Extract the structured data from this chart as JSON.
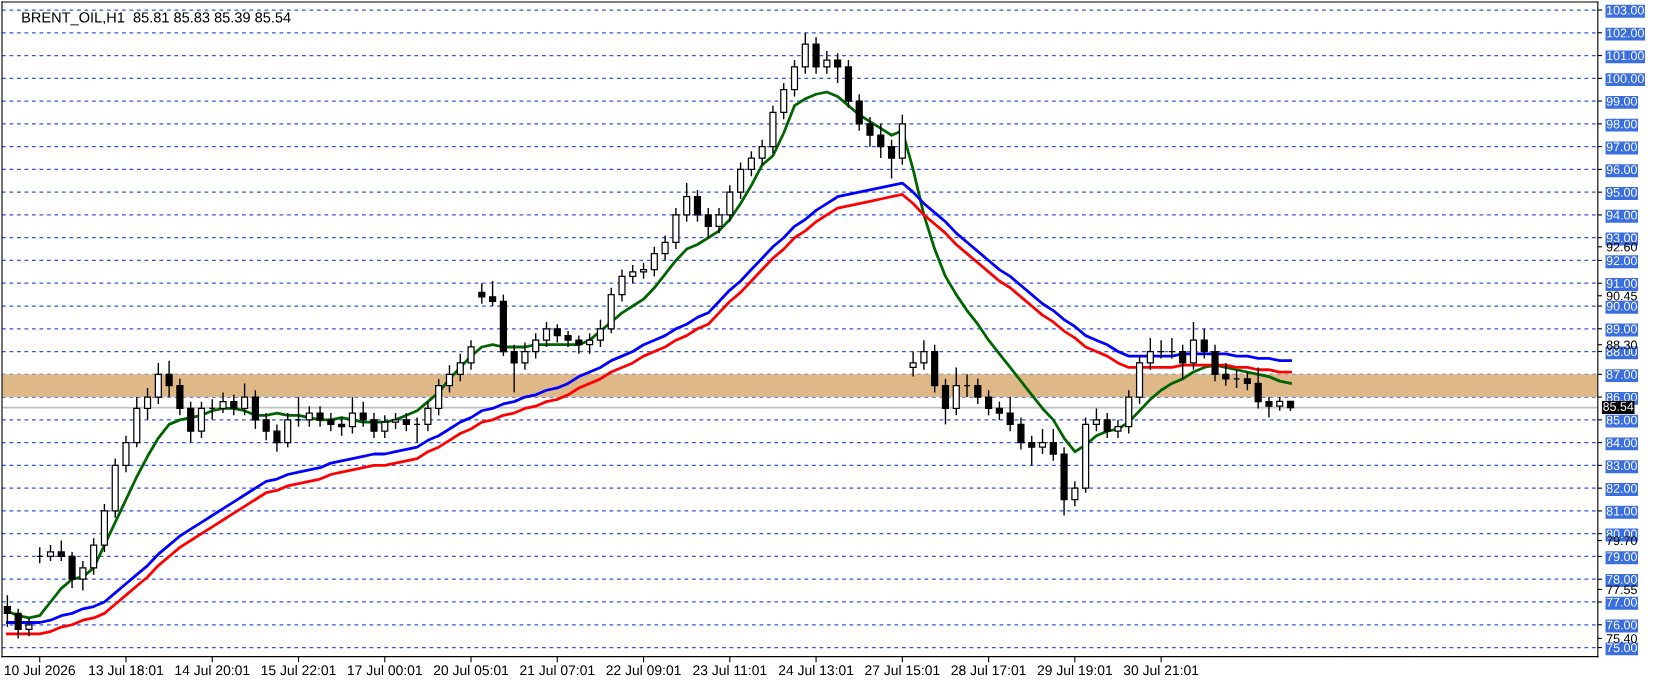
{
  "chart_data": {
    "type": "candlestick",
    "title": "BRENT_OIL,H1  85.81 85.83 85.39 85.54",
    "categories": [
      null,
      null,
      null,
      "10 Jul 2026",
      null,
      null,
      null,
      null,
      null,
      null,
      null,
      "13 Jul 18:01",
      null,
      null,
      null,
      null,
      null,
      null,
      null,
      "14 Jul 20:01",
      null,
      null,
      null,
      null,
      null,
      null,
      null,
      "15 Jul 22:01",
      null,
      null,
      null,
      null,
      null,
      null,
      null,
      "17 Jul 00:01",
      null,
      null,
      null,
      null,
      null,
      null,
      null,
      "20 Jul 05:01",
      null,
      null,
      null,
      null,
      null,
      null,
      null,
      "21 Jul 07:01",
      null,
      null,
      null,
      null,
      null,
      null,
      null,
      "22 Jul 09:01",
      null,
      null,
      null,
      null,
      null,
      null,
      null,
      "23 Jul 11:01",
      null,
      null,
      null,
      null,
      null,
      null,
      null,
      "24 Jul 13:01",
      null,
      null,
      null,
      null,
      null,
      null,
      null,
      "27 Jul 15:01",
      null,
      null,
      null,
      null,
      null,
      null,
      null,
      "28 Jul 17:01",
      null,
      null,
      null,
      null,
      null,
      null,
      null,
      "29 Jul 19:01",
      null,
      null,
      null,
      null,
      null,
      null,
      null,
      "30 Jul 21:01",
      null,
      null,
      null,
      null,
      null,
      null,
      null,
      null,
      null,
      null,
      null,
      null,
      null,
      null,
      null,
      null,
      null,
      null,
      null,
      null,
      null,
      null,
      null,
      null,
      null,
      null,
      null,
      null,
      null,
      null,
      null,
      null,
      null,
      null,
      null,
      null,
      null,
      null,
      null,
      null
    ],
    "ohlc": [
      [
        76.8,
        77.3,
        75.9,
        76.5
      ],
      [
        76.5,
        76.7,
        75.4,
        75.8
      ],
      [
        75.8,
        76.3,
        75.5,
        76.0
      ],
      [
        79.0,
        79.4,
        78.7,
        79.0
      ],
      [
        79.0,
        79.5,
        78.8,
        79.2
      ],
      [
        79.2,
        79.7,
        78.8,
        79.0
      ],
      [
        79.0,
        79.2,
        77.6,
        78.0
      ],
      [
        78.0,
        78.8,
        77.5,
        78.5
      ],
      [
        78.5,
        79.8,
        78.2,
        79.5
      ],
      [
        79.5,
        81.3,
        79.2,
        81.0
      ],
      [
        81.0,
        83.3,
        80.7,
        83.0
      ],
      [
        83.0,
        84.3,
        82.7,
        84.0
      ],
      [
        84.0,
        86.0,
        83.8,
        85.5
      ],
      [
        85.5,
        86.4,
        85.0,
        86.0
      ],
      [
        86.0,
        87.5,
        85.7,
        87.0
      ],
      [
        87.0,
        87.6,
        86.0,
        86.5
      ],
      [
        86.5,
        86.8,
        85.2,
        85.5
      ],
      [
        85.5,
        85.8,
        84.0,
        84.5
      ],
      [
        84.5,
        85.8,
        84.2,
        85.5
      ],
      [
        85.5,
        85.9,
        85.0,
        85.5
      ],
      [
        85.5,
        86.2,
        85.3,
        85.8
      ],
      [
        85.8,
        86.1,
        85.2,
        85.5
      ],
      [
        85.5,
        86.6,
        85.2,
        86.0
      ],
      [
        86.0,
        86.3,
        84.6,
        85.0
      ],
      [
        85.0,
        85.3,
        84.1,
        84.5
      ],
      [
        84.5,
        84.8,
        83.6,
        84.0
      ],
      [
        84.0,
        85.3,
        83.8,
        85.0
      ],
      [
        85.0,
        86.0,
        84.7,
        85.0
      ],
      [
        85.0,
        85.6,
        84.7,
        85.3
      ],
      [
        85.3,
        85.6,
        84.7,
        85.0
      ],
      [
        85.0,
        85.3,
        84.5,
        84.8
      ],
      [
        84.8,
        85.1,
        84.3,
        84.7
      ],
      [
        84.7,
        86.0,
        84.4,
        85.3
      ],
      [
        85.3,
        85.8,
        84.7,
        85.0
      ],
      [
        85.0,
        85.3,
        84.2,
        84.5
      ],
      [
        84.5,
        85.2,
        84.2,
        84.9
      ],
      [
        84.9,
        85.3,
        84.6,
        85.0
      ],
      [
        85.0,
        85.3,
        84.5,
        84.8
      ],
      [
        84.8,
        85.1,
        84.0,
        84.8
      ],
      [
        84.8,
        85.8,
        84.5,
        85.5
      ],
      [
        85.5,
        86.8,
        85.2,
        86.5
      ],
      [
        86.5,
        87.4,
        86.2,
        87.0
      ],
      [
        87.0,
        87.9,
        86.7,
        87.5
      ],
      [
        87.5,
        88.5,
        87.2,
        88.2
      ],
      [
        90.6,
        91.0,
        90.1,
        90.4
      ],
      [
        90.4,
        91.1,
        90.0,
        90.2
      ],
      [
        90.2,
        90.5,
        87.8,
        88.0
      ],
      [
        88.0,
        88.3,
        86.2,
        87.5
      ],
      [
        87.5,
        88.4,
        87.2,
        88.0
      ],
      [
        88.0,
        88.8,
        87.7,
        88.5
      ],
      [
        88.5,
        89.3,
        88.2,
        89.0
      ],
      [
        89.0,
        89.2,
        88.4,
        88.7
      ],
      [
        88.7,
        88.9,
        88.2,
        88.5
      ],
      [
        88.5,
        88.7,
        87.9,
        88.3
      ],
      [
        88.3,
        88.8,
        87.9,
        88.5
      ],
      [
        88.5,
        89.4,
        88.2,
        89.0
      ],
      [
        89.0,
        90.8,
        88.8,
        90.5
      ],
      [
        90.5,
        91.6,
        90.2,
        91.3
      ],
      [
        91.3,
        91.8,
        91.0,
        91.5
      ],
      [
        91.5,
        91.9,
        91.2,
        91.6
      ],
      [
        91.6,
        92.6,
        91.3,
        92.3
      ],
      [
        92.3,
        93.1,
        92.0,
        92.8
      ],
      [
        92.8,
        94.3,
        92.5,
        94.0
      ],
      [
        94.0,
        95.4,
        93.7,
        94.8
      ],
      [
        94.8,
        95.1,
        93.7,
        94.0
      ],
      [
        94.0,
        94.3,
        93.0,
        93.5
      ],
      [
        93.5,
        94.3,
        93.2,
        94.0
      ],
      [
        94.0,
        95.3,
        93.7,
        95.0
      ],
      [
        95.0,
        96.3,
        94.7,
        96.0
      ],
      [
        96.0,
        96.8,
        95.7,
        96.5
      ],
      [
        96.5,
        97.3,
        96.2,
        97.0
      ],
      [
        97.0,
        98.8,
        96.7,
        98.5
      ],
      [
        98.5,
        99.8,
        98.2,
        99.5
      ],
      [
        99.5,
        100.8,
        99.2,
        100.5
      ],
      [
        100.5,
        102.0,
        100.2,
        101.5
      ],
      [
        101.5,
        101.8,
        100.2,
        100.5
      ],
      [
        100.5,
        101.2,
        100.2,
        100.8
      ],
      [
        100.8,
        101.1,
        99.8,
        100.5
      ],
      [
        100.5,
        100.8,
        98.7,
        99.0
      ],
      [
        99.0,
        99.3,
        97.7,
        98.0
      ],
      [
        98.0,
        98.3,
        97.0,
        97.5
      ],
      [
        97.5,
        98.0,
        96.5,
        97.0
      ],
      [
        97.0,
        97.3,
        95.6,
        96.5
      ],
      [
        96.5,
        98.4,
        96.2,
        98.0
      ],
      [
        87.3,
        88.0,
        86.9,
        87.5
      ],
      [
        87.5,
        88.5,
        87.2,
        88.0
      ],
      [
        88.0,
        88.3,
        86.2,
        86.5
      ],
      [
        86.5,
        86.8,
        84.8,
        85.5
      ],
      [
        85.5,
        87.3,
        85.2,
        86.5
      ],
      [
        86.5,
        87.0,
        86.0,
        86.5
      ],
      [
        86.5,
        86.8,
        85.7,
        86.0
      ],
      [
        86.0,
        86.3,
        85.2,
        85.5
      ],
      [
        85.5,
        85.8,
        85.0,
        85.3
      ],
      [
        85.3,
        86.0,
        84.5,
        84.8
      ],
      [
        84.8,
        85.1,
        83.7,
        84.0
      ],
      [
        84.0,
        84.3,
        83.0,
        83.8
      ],
      [
        83.8,
        84.6,
        83.5,
        84.0
      ],
      [
        84.0,
        84.6,
        83.2,
        83.5
      ],
      [
        83.5,
        83.8,
        80.8,
        81.5
      ],
      [
        81.5,
        82.3,
        81.2,
        82.0
      ],
      [
        82.0,
        85.1,
        81.8,
        84.8
      ],
      [
        84.8,
        85.5,
        84.5,
        85.0
      ],
      [
        85.0,
        85.3,
        84.2,
        84.5
      ],
      [
        84.5,
        85.0,
        84.2,
        84.7
      ],
      [
        84.7,
        86.3,
        84.4,
        86.0
      ],
      [
        86.0,
        87.8,
        85.7,
        87.5
      ],
      [
        87.5,
        88.6,
        87.2,
        88.0
      ],
      [
        88.0,
        88.5,
        87.7,
        88.0
      ],
      [
        88.0,
        88.6,
        87.7,
        88.0
      ],
      [
        88.0,
        88.3,
        86.8,
        87.5
      ],
      [
        87.5,
        89.3,
        87.2,
        88.5
      ],
      [
        88.5,
        89.0,
        87.7,
        88.0
      ],
      [
        88.0,
        88.3,
        86.7,
        87.0
      ],
      [
        87.0,
        87.5,
        86.5,
        86.8
      ],
      [
        86.8,
        87.2,
        86.4,
        86.8
      ],
      [
        86.8,
        87.1,
        86.3,
        86.6
      ],
      [
        86.6,
        87.3,
        85.5,
        85.8
      ],
      [
        85.8,
        86.0,
        85.1,
        85.6
      ],
      [
        85.6,
        86.0,
        85.4,
        85.81
      ],
      [
        85.81,
        85.83,
        85.39,
        85.54
      ],
      null,
      null,
      null,
      null,
      null,
      null,
      null,
      null,
      null,
      null,
      null,
      null,
      null,
      null,
      null,
      null,
      null,
      null,
      null,
      null,
      null,
      null,
      null,
      null,
      null,
      null,
      null,
      null
    ],
    "series": [
      {
        "type": "line",
        "color": "#006400",
        "values": [
          76.6,
          76.4,
          76.3,
          76.4,
          77.0,
          77.6,
          78.0,
          78.1,
          78.5,
          79.5,
          80.5,
          81.5,
          82.5,
          83.4,
          84.2,
          84.8,
          85.0,
          85.1,
          85.2,
          85.4,
          85.5,
          85.5,
          85.4,
          85.2,
          85.2,
          85.3,
          85.2,
          85.2,
          85.1,
          85.0,
          85.0,
          85.1,
          85.0,
          84.9,
          84.9,
          84.9,
          85.0,
          85.2,
          85.4,
          85.8,
          86.2,
          86.8,
          87.3,
          87.8,
          88.2,
          88.3,
          88.2,
          88.2,
          88.2,
          88.3,
          88.3,
          88.3,
          88.3,
          88.3,
          88.5,
          88.9,
          89.3,
          89.7,
          90.0,
          90.3,
          90.8,
          91.4,
          92.0,
          92.5,
          92.7,
          93.0,
          93.3,
          93.8,
          94.5,
          95.3,
          96.2,
          96.6,
          97.6,
          98.8,
          99.1,
          99.3,
          99.4,
          99.2,
          98.8,
          98.4,
          98.1,
          97.8,
          97.5,
          97.7,
          96.0,
          94.0,
          92.5,
          91.3,
          90.5,
          89.8,
          89.2,
          88.5,
          87.9,
          87.3,
          86.7,
          86.1,
          85.5,
          85.0,
          84.2,
          83.6,
          83.9,
          84.3,
          84.5,
          84.6,
          84.9,
          85.4,
          85.9,
          86.3,
          86.6,
          86.8,
          87.1,
          87.3,
          87.4,
          87.3,
          87.2,
          87.1,
          87.0,
          86.9,
          86.7,
          86.6,
          null,
          null,
          null,
          null,
          null,
          null,
          null,
          null,
          null,
          null,
          null,
          null,
          null,
          null,
          null,
          null,
          null,
          null,
          null,
          null,
          null,
          null,
          null,
          null,
          null,
          null,
          null,
          null
        ]
      },
      {
        "type": "line",
        "color": "#0000ff",
        "values": [
          76.1,
          76.1,
          76.1,
          76.1,
          76.2,
          76.4,
          76.5,
          76.7,
          76.8,
          77.0,
          77.4,
          77.8,
          78.2,
          78.6,
          79.1,
          79.5,
          79.9,
          80.2,
          80.5,
          80.8,
          81.1,
          81.4,
          81.7,
          82.0,
          82.3,
          82.4,
          82.6,
          82.7,
          82.8,
          82.9,
          83.1,
          83.2,
          83.3,
          83.4,
          83.5,
          83.5,
          83.6,
          83.7,
          83.8,
          84.1,
          84.3,
          84.6,
          84.9,
          85.1,
          85.4,
          85.5,
          85.7,
          85.8,
          86.0,
          86.1,
          86.3,
          86.4,
          86.6,
          86.9,
          87.1,
          87.3,
          87.6,
          87.8,
          88.0,
          88.3,
          88.5,
          88.7,
          89.0,
          89.2,
          89.5,
          89.7,
          90.2,
          90.7,
          91.1,
          91.6,
          92.1,
          92.6,
          93.0,
          93.5,
          93.8,
          94.2,
          94.5,
          94.8,
          94.9,
          95.0,
          95.1,
          95.2,
          95.3,
          95.4,
          95.0,
          94.5,
          94.1,
          93.7,
          93.2,
          92.8,
          92.4,
          92.0,
          91.6,
          91.3,
          90.9,
          90.5,
          90.1,
          89.8,
          89.4,
          89.1,
          88.7,
          88.5,
          88.3,
          88.0,
          87.8,
          87.8,
          87.8,
          87.8,
          87.8,
          87.9,
          87.9,
          87.9,
          87.9,
          87.9,
          87.8,
          87.8,
          87.7,
          87.7,
          87.6,
          87.6,
          null,
          null,
          null,
          null,
          null,
          null,
          null,
          null,
          null,
          null,
          null,
          null,
          null,
          null,
          null,
          null,
          null,
          null,
          null,
          null,
          null,
          null,
          null,
          null,
          null,
          null,
          null,
          null
        ]
      },
      {
        "type": "line",
        "color": "#ff0000",
        "values": [
          75.6,
          75.6,
          75.6,
          75.6,
          75.7,
          75.9,
          76.0,
          76.2,
          76.3,
          76.5,
          76.9,
          77.3,
          77.7,
          78.1,
          78.6,
          79.0,
          79.4,
          79.7,
          80.0,
          80.3,
          80.6,
          80.9,
          81.2,
          81.5,
          81.8,
          81.9,
          82.1,
          82.2,
          82.3,
          82.4,
          82.6,
          82.7,
          82.8,
          82.9,
          83.0,
          83.0,
          83.1,
          83.2,
          83.3,
          83.6,
          83.8,
          84.1,
          84.4,
          84.6,
          84.9,
          85.0,
          85.2,
          85.3,
          85.5,
          85.6,
          85.8,
          85.9,
          86.1,
          86.4,
          86.6,
          86.8,
          87.1,
          87.3,
          87.5,
          87.8,
          88.0,
          88.2,
          88.5,
          88.7,
          89.0,
          89.2,
          89.7,
          90.2,
          90.6,
          91.1,
          91.6,
          92.1,
          92.5,
          93.0,
          93.3,
          93.7,
          94.0,
          94.3,
          94.4,
          94.5,
          94.6,
          94.7,
          94.8,
          94.9,
          94.5,
          94.0,
          93.6,
          93.2,
          92.7,
          92.3,
          91.9,
          91.5,
          91.1,
          90.8,
          90.4,
          90.0,
          89.6,
          89.3,
          88.9,
          88.6,
          88.2,
          88.0,
          87.8,
          87.5,
          87.3,
          87.3,
          87.3,
          87.3,
          87.3,
          87.4,
          87.4,
          87.4,
          87.4,
          87.4,
          87.3,
          87.3,
          87.2,
          87.2,
          87.1,
          87.1,
          null,
          null,
          null,
          null,
          null,
          null,
          null,
          null,
          null,
          null,
          null,
          null,
          null,
          null,
          null,
          null,
          null,
          null,
          null,
          null,
          null,
          null,
          null,
          null,
          null,
          null,
          null,
          null
        ]
      }
    ],
    "ylim": [
      74.6,
      103.35
    ],
    "yticks": [
      {
        "value": 75,
        "label": "75.00"
      },
      {
        "value": 76,
        "label": "76.00"
      },
      {
        "value": 77,
        "label": "77.00"
      },
      {
        "value": 78,
        "label": "78.00"
      },
      {
        "value": 79,
        "label": "79.00"
      },
      {
        "value": 80,
        "label": "80.00"
      },
      {
        "value": 81,
        "label": "81.00"
      },
      {
        "value": 82,
        "label": "82.00"
      },
      {
        "value": 83,
        "label": "83.00"
      },
      {
        "value": 84,
        "label": "84.00"
      },
      {
        "value": 85,
        "label": "85.00"
      },
      {
        "value": 86,
        "label": "86.00"
      },
      {
        "value": 87,
        "label": "87.00"
      },
      {
        "value": 88,
        "label": "88.00"
      },
      {
        "value": 89,
        "label": "89.00"
      },
      {
        "value": 90,
        "label": "90.00"
      },
      {
        "value": 91,
        "label": "91.00"
      },
      {
        "value": 92,
        "label": "92.00"
      },
      {
        "value": 93,
        "label": "93.00"
      },
      {
        "value": 94,
        "label": "94.00"
      },
      {
        "value": 95,
        "label": "95.00"
      },
      {
        "value": 96,
        "label": "96.00"
      },
      {
        "value": 97,
        "label": "97.00"
      },
      {
        "value": 98,
        "label": "98.00"
      },
      {
        "value": 99,
        "label": "99.00"
      },
      {
        "value": 100,
        "label": "100.00"
      },
      {
        "value": 101,
        "label": "101.00"
      },
      {
        "value": 102,
        "label": "102.00"
      },
      {
        "value": 103,
        "label": "103.00"
      },
      {
        "value": 75.4,
        "label": "75.40"
      },
      {
        "value": 77.55,
        "label": "77.55"
      },
      {
        "value": 79.7,
        "label": "79.70"
      },
      {
        "value": 88.3,
        "label": "88.30"
      },
      {
        "value": 90.45,
        "label": "90.45"
      },
      {
        "value": 92.6,
        "label": "92.60"
      }
    ],
    "ref_lines": [
      {
        "axis": "y",
        "value": 85.54,
        "label": "85.54",
        "color": "#c0c0c0"
      }
    ],
    "bands": [
      {
        "axis": "y",
        "from": 86.0,
        "to": 87.0,
        "color": "#deb887"
      }
    ],
    "grid": "y"
  }
}
